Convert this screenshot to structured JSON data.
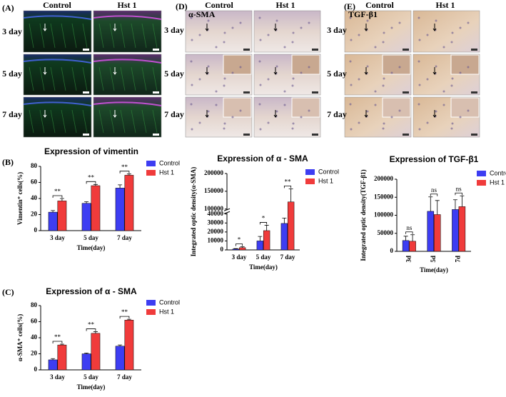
{
  "panels": {
    "A": {
      "label": "(A)",
      "columns": [
        "Control",
        "Hst 1"
      ],
      "rows": [
        "3 day",
        "5 day",
        "7 day"
      ]
    },
    "D": {
      "label": "(D)",
      "columns": [
        "Control",
        "Hst 1"
      ],
      "rows": [
        "3 day",
        "5 day",
        "7 day"
      ],
      "stain": "α-SMA"
    },
    "E": {
      "label": "(E)",
      "columns": [
        "Control",
        "Hst 1"
      ],
      "rows": [
        "3 day",
        "5 day",
        "7 day"
      ],
      "stain": "TGF-β1"
    }
  },
  "panel_labels": {
    "B": "(B)",
    "C": "(C)"
  },
  "chart_data": [
    {
      "type": "bar",
      "title": "Expression of vimentin",
      "x_label": "Time(day)",
      "y_label": "Vimentin⁺ cells(%)",
      "categories": [
        "3 day",
        "5 day",
        "7 day"
      ],
      "series": [
        {
          "name": "Control",
          "color": "#3d3df2",
          "values": [
            23,
            34,
            53
          ],
          "errors": [
            2,
            2,
            4
          ]
        },
        {
          "name": "Hst 1",
          "color": "#f03b3b",
          "values": [
            37,
            56,
            69
          ],
          "errors": [
            3,
            1.5,
            1.5
          ]
        }
      ],
      "significance": [
        "**",
        "**",
        "**"
      ],
      "ylim": [
        0,
        80
      ],
      "yticks": [
        0,
        20,
        40,
        60,
        80
      ],
      "legend": "top-right"
    },
    {
      "type": "bar",
      "title": "Expression of α - SMA",
      "x_label": "Time(day)",
      "y_label": "α-SMA⁺ cells(%)",
      "categories": [
        "3 day",
        "5 day",
        "7 day"
      ],
      "series": [
        {
          "name": "Control",
          "color": "#3d3df2",
          "values": [
            12.5,
            20,
            29.5
          ],
          "errors": [
            1.5,
            1,
            1.5
          ]
        },
        {
          "name": "Hst 1",
          "color": "#f03b3b",
          "values": [
            31,
            45.5,
            62
          ],
          "errors": [
            1,
            2,
            1
          ]
        }
      ],
      "significance": [
        "**",
        "**",
        "**"
      ],
      "ylim": [
        0,
        80
      ],
      "yticks": [
        0,
        20,
        40,
        60,
        80
      ],
      "legend": "top-right"
    },
    {
      "type": "bar",
      "title": "Expression of α - SMA",
      "x_label": "Time(day)",
      "y_label": "Integrated optic density(α-SMA)",
      "categories": [
        "3 day",
        "5 day",
        "7 day"
      ],
      "series": [
        {
          "name": "Control",
          "color": "#3d3df2",
          "values": [
            1000,
            10000,
            29500
          ],
          "errors": [
            500,
            5000,
            6000
          ]
        },
        {
          "name": "Hst 1",
          "color": "#f03b3b",
          "values": [
            2500,
            21500,
            120000
          ],
          "errors": [
            1000,
            6000,
            37000
          ]
        }
      ],
      "significance": [
        "*",
        "*",
        "**"
      ],
      "ylim": [
        0,
        200000
      ],
      "axis_break": [
        40000,
        100000
      ],
      "yticks": [
        0,
        10000,
        20000,
        30000,
        40000,
        100000,
        150000,
        200000
      ],
      "legend": "top-right"
    },
    {
      "type": "bar",
      "title": "Expression of TGF-β1",
      "x_label": "Time(day)",
      "y_label": "Integrated optic density(TGF-β1)",
      "categories": [
        "3d",
        "5d",
        "7d"
      ],
      "rotate_categories": true,
      "series": [
        {
          "name": "Control",
          "color": "#3d3df2",
          "values": [
            30000,
            111000,
            116000
          ],
          "errors": [
            12000,
            40000,
            27000
          ]
        },
        {
          "name": "Hst 1",
          "color": "#f03b3b",
          "values": [
            28000,
            102000,
            124000
          ],
          "errors": [
            18000,
            39000,
            30000
          ]
        }
      ],
      "significance": [
        "ns",
        "ns",
        "ns"
      ],
      "ylim": [
        0,
        200000
      ],
      "yticks": [
        0,
        50000,
        100000,
        150000,
        200000
      ],
      "legend": "top-right"
    }
  ]
}
